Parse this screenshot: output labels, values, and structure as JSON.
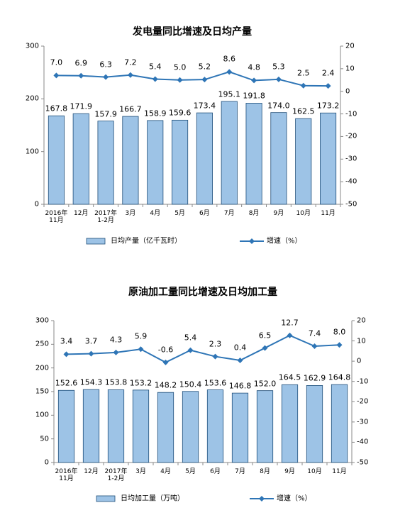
{
  "chart_data": [
    {
      "type": "bar_line",
      "title": "发电量同比增速及日均产量",
      "categories": [
        "2016年\n11月",
        "12月",
        "2017年\n1-2月",
        "3月",
        "4月",
        "5月",
        "6月",
        "7月",
        "8月",
        "9月",
        "10月",
        "11月"
      ],
      "series": [
        {
          "name": "日均产量（亿千瓦时）",
          "color": "#9dc3e6",
          "values": [
            167.8,
            171.9,
            157.9,
            166.7,
            158.9,
            159.6,
            173.4,
            195.1,
            191.8,
            174.0,
            162.5,
            173.2
          ],
          "value_labels": [
            "167.8",
            "171.9",
            "157.9",
            "166.7",
            "158.9",
            "159.6",
            "173.4",
            "195.1",
            "191.8",
            "174.0",
            "162.5",
            "173.2"
          ]
        },
        {
          "name": "增速（%）",
          "color": "#2e75b6",
          "axis": "y2",
          "values": [
            7.0,
            6.9,
            6.3,
            7.2,
            5.4,
            5.0,
            5.2,
            8.6,
            4.8,
            5.3,
            2.5,
            2.4
          ],
          "value_labels": [
            "7.0",
            "6.9",
            "6.3",
            "7.2",
            "5.4",
            "5.0",
            "5.2",
            "8.6",
            "4.8",
            "5.3",
            "2.5",
            "2.4"
          ]
        }
      ],
      "ylim": [
        0,
        300
      ],
      "yticks": [
        0,
        100,
        200,
        300
      ],
      "y2lim": [
        -50,
        20
      ],
      "y2ticks": [
        -50,
        -40,
        -30,
        -20,
        -10,
        0,
        10,
        20
      ]
    },
    {
      "type": "bar_line",
      "title": "原油加工量同比增速及日均加工量",
      "categories": [
        "2016年\n11月",
        "12月",
        "2017年\n1-2月",
        "3月",
        "4月",
        "5月",
        "6月",
        "7月",
        "8月",
        "9月",
        "10月",
        "11月"
      ],
      "series": [
        {
          "name": "日均加工量（万吨）",
          "color": "#9dc3e6",
          "values": [
            152.6,
            154.3,
            153.8,
            153.2,
            148.2,
            150.4,
            153.6,
            146.8,
            152.0,
            164.5,
            162.9,
            164.8
          ],
          "value_labels": [
            "152.6",
            "154.3",
            "153.8",
            "153.2",
            "148.2",
            "150.4",
            "153.6",
            "146.8",
            "152.0",
            "164.5",
            "162.9",
            "164.8"
          ]
        },
        {
          "name": "增速（%）",
          "color": "#2e75b6",
          "axis": "y2",
          "values": [
            3.4,
            3.7,
            4.3,
            5.9,
            -0.6,
            5.4,
            2.3,
            0.4,
            6.5,
            12.7,
            7.4,
            8.0
          ],
          "value_labels": [
            "3.4",
            "3.7",
            "4.3",
            "5.9",
            "-0.6",
            "5.4",
            "2.3",
            "0.4",
            "6.5",
            "12.7",
            "7.4",
            "8.0"
          ]
        }
      ],
      "ylim": [
        0,
        300
      ],
      "yticks": [
        0,
        50,
        100,
        150,
        200,
        250,
        300
      ],
      "y2lim": [
        -50,
        20
      ],
      "y2ticks": [
        -50,
        -40,
        -30,
        -20,
        -10,
        0,
        10,
        20
      ]
    }
  ]
}
